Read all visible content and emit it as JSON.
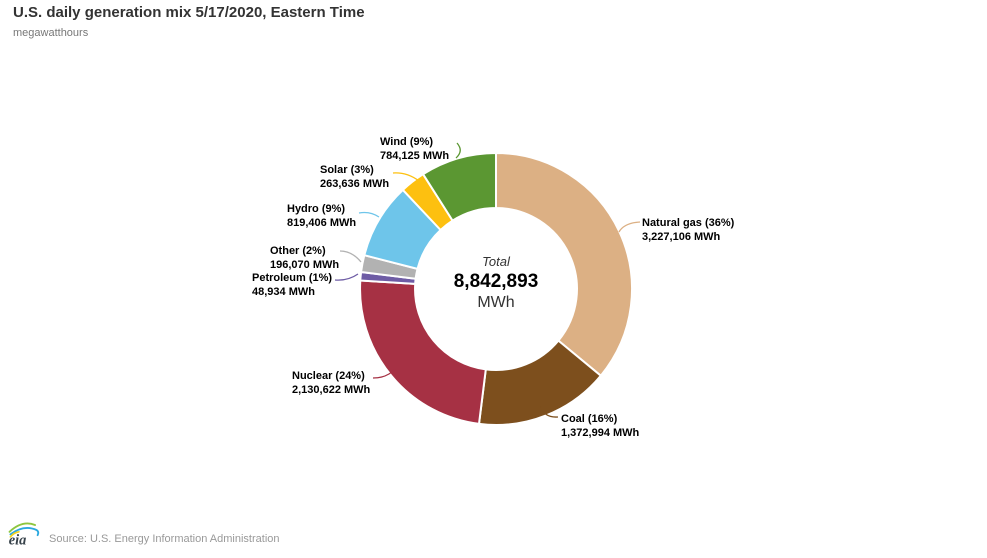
{
  "header": {
    "title": "U.S. daily generation mix 5/17/2020, Eastern Time",
    "subtitle": "megawatthours"
  },
  "center": {
    "label": "Total",
    "value": "8,842,893",
    "unit": "MWh"
  },
  "footer": {
    "logo_text": "eia",
    "source": "Source: U.S. Energy Information Administration"
  },
  "chart_data": {
    "type": "pie",
    "subtype": "donut",
    "title": "U.S. daily generation mix 5/17/2020, Eastern Time",
    "units": "megawatthours",
    "total_mwh": 8842893,
    "legend": "none",
    "label_style": "outside-with-connectors",
    "slices": [
      {
        "name": "Natural gas",
        "pct": 36,
        "value_mwh": 3227106,
        "label": "Natural gas (36%)",
        "value_label": "3,227,106 MWh",
        "color": "#dcb084"
      },
      {
        "name": "Coal",
        "pct": 16,
        "value_mwh": 1372994,
        "label": "Coal (16%)",
        "value_label": "1,372,994 MWh",
        "color": "#7d4f1d"
      },
      {
        "name": "Nuclear",
        "pct": 24,
        "value_mwh": 2130622,
        "label": "Nuclear (24%)",
        "value_label": "2,130,622 MWh",
        "color": "#a63144"
      },
      {
        "name": "Petroleum",
        "pct": 1,
        "value_mwh": 48934,
        "label": "Petroleum (1%)",
        "value_label": "48,934 MWh",
        "color": "#6e5ca5"
      },
      {
        "name": "Other",
        "pct": 2,
        "value_mwh": 196070,
        "label": "Other (2%)",
        "value_label": "196,070 MWh",
        "color": "#b2b2b2"
      },
      {
        "name": "Hydro",
        "pct": 9,
        "value_mwh": 819406,
        "label": "Hydro (9%)",
        "value_label": "819,406 MWh",
        "color": "#6ec5ea"
      },
      {
        "name": "Solar",
        "pct": 3,
        "value_mwh": 263636,
        "label": "Solar (3%)",
        "value_label": "263,636 MWh",
        "color": "#fdc010"
      },
      {
        "name": "Wind",
        "pct": 9,
        "value_mwh": 784125,
        "label": "Wind (9%)",
        "value_label": "784,125 MWh",
        "color": "#5b9732"
      }
    ],
    "logo_colors": {
      "blue": "#2aa8df",
      "green": "#8dc63f",
      "yellow": "#f5d31e",
      "text": "#37424a"
    }
  }
}
